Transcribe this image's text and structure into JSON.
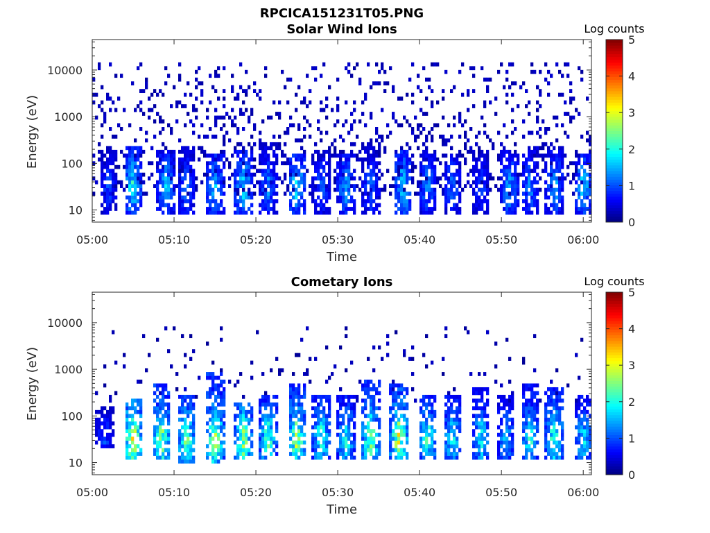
{
  "figure_title": "RPCICA151231T05.PNG",
  "colormap": "jet",
  "chart_data": [
    {
      "type": "heatmap",
      "title": "Solar Wind Ions",
      "xlabel": "Time",
      "ylabel": "Energy (eV)",
      "x_ticks": [
        "05:00",
        "05:10",
        "05:20",
        "05:30",
        "05:40",
        "05:50",
        "06:00"
      ],
      "y_ticks": [
        "10",
        "100",
        "1000",
        "10000"
      ],
      "y_scale": "log",
      "ylim": [
        5.5,
        45000
      ],
      "xlim": [
        "05:00",
        "06:01"
      ],
      "colorbar": {
        "label": "Log counts",
        "ticks": [
          "0",
          "1",
          "2",
          "3",
          "4",
          "5"
        ],
        "range": [
          0,
          5
        ]
      },
      "features": [
        {
          "time_min": 2,
          "e_lo": 8,
          "e_hi": 200,
          "peak": 1.0
        },
        {
          "time_min": 5,
          "e_lo": 8,
          "e_hi": 250,
          "peak": 2.0
        },
        {
          "time_min": 9,
          "e_lo": 8,
          "e_hi": 200,
          "peak": 1.6
        },
        {
          "time_min": 11.5,
          "e_lo": 8,
          "e_hi": 220,
          "peak": 1.2
        },
        {
          "time_min": 15,
          "e_lo": 8,
          "e_hi": 150,
          "peak": 1.6
        },
        {
          "time_min": 18.5,
          "e_lo": 8,
          "e_hi": 200,
          "peak": 1.8
        },
        {
          "time_min": 21.5,
          "e_lo": 8,
          "e_hi": 300,
          "peak": 1.3
        },
        {
          "time_min": 25,
          "e_lo": 8,
          "e_hi": 150,
          "peak": 1.8
        },
        {
          "time_min": 28,
          "e_lo": 8,
          "e_hi": 200,
          "peak": 1.1
        },
        {
          "time_min": 31,
          "e_lo": 8,
          "e_hi": 150,
          "peak": 1.5
        },
        {
          "time_min": 34,
          "e_lo": 8,
          "e_hi": 300,
          "peak": 1.2
        },
        {
          "time_min": 38,
          "e_lo": 8,
          "e_hi": 200,
          "peak": 1.8
        },
        {
          "time_min": 41,
          "e_lo": 8,
          "e_hi": 200,
          "peak": 1.3
        },
        {
          "time_min": 44,
          "e_lo": 8,
          "e_hi": 150,
          "peak": 1.2
        },
        {
          "time_min": 47.5,
          "e_lo": 8,
          "e_hi": 200,
          "peak": 1.0
        },
        {
          "time_min": 51,
          "e_lo": 8,
          "e_hi": 200,
          "peak": 1.5
        },
        {
          "time_min": 53.5,
          "e_lo": 8,
          "e_hi": 250,
          "peak": 1.3
        },
        {
          "time_min": 56.5,
          "e_lo": 8,
          "e_hi": 200,
          "peak": 1.5
        },
        {
          "time_min": 60,
          "e_lo": 8,
          "e_hi": 150,
          "peak": 1.7
        }
      ],
      "background": {
        "e_lo": 20,
        "e_hi": 15000,
        "density": 0.22,
        "level": 0.15
      }
    },
    {
      "type": "heatmap",
      "title": "Cometary Ions",
      "xlabel": "Time",
      "ylabel": "Energy (eV)",
      "x_ticks": [
        "05:00",
        "05:10",
        "05:20",
        "05:30",
        "05:40",
        "05:50",
        "06:00"
      ],
      "y_ticks": [
        "10",
        "100",
        "1000",
        "10000"
      ],
      "y_scale": "log",
      "ylim": [
        5.5,
        45000
      ],
      "xlim": [
        "05:00",
        "06:01"
      ],
      "colorbar": {
        "label": "Log counts",
        "ticks": [
          "0",
          "1",
          "2",
          "3",
          "4",
          "5"
        ],
        "range": [
          0,
          5
        ]
      },
      "features": [
        {
          "time_min": 1.5,
          "e_lo": 20,
          "e_hi": 150,
          "peak": 1.0
        },
        {
          "time_min": 5,
          "e_lo": 12,
          "e_hi": 250,
          "peak": 3.1
        },
        {
          "time_min": 8.5,
          "e_lo": 12,
          "e_hi": 500,
          "peak": 2.7
        },
        {
          "time_min": 11.5,
          "e_lo": 10,
          "e_hi": 300,
          "peak": 2.5
        },
        {
          "time_min": 15,
          "e_lo": 10,
          "e_hi": 800,
          "peak": 2.8
        },
        {
          "time_min": 18.5,
          "e_lo": 12,
          "e_hi": 200,
          "peak": 2.7
        },
        {
          "time_min": 21.5,
          "e_lo": 12,
          "e_hi": 300,
          "peak": 2.3
        },
        {
          "time_min": 25,
          "e_lo": 12,
          "e_hi": 500,
          "peak": 2.8
        },
        {
          "time_min": 28,
          "e_lo": 12,
          "e_hi": 300,
          "peak": 2.2
        },
        {
          "time_min": 31,
          "e_lo": 12,
          "e_hi": 300,
          "peak": 2.0
        },
        {
          "time_min": 34,
          "e_lo": 12,
          "e_hi": 600,
          "peak": 2.6
        },
        {
          "time_min": 37.5,
          "e_lo": 12,
          "e_hi": 500,
          "peak": 3.0
        },
        {
          "time_min": 41,
          "e_lo": 12,
          "e_hi": 300,
          "peak": 2.2
        },
        {
          "time_min": 44,
          "e_lo": 12,
          "e_hi": 300,
          "peak": 2.0
        },
        {
          "time_min": 47.5,
          "e_lo": 12,
          "e_hi": 400,
          "peak": 1.9
        },
        {
          "time_min": 50.5,
          "e_lo": 12,
          "e_hi": 300,
          "peak": 1.6
        },
        {
          "time_min": 53.5,
          "e_lo": 12,
          "e_hi": 500,
          "peak": 2.1
        },
        {
          "time_min": 56.5,
          "e_lo": 12,
          "e_hi": 400,
          "peak": 2.4
        },
        {
          "time_min": 60,
          "e_lo": 12,
          "e_hi": 300,
          "peak": 1.8
        }
      ],
      "background": {
        "e_lo": 200,
        "e_hi": 8000,
        "density": 0.05,
        "level": 0.1
      }
    }
  ]
}
